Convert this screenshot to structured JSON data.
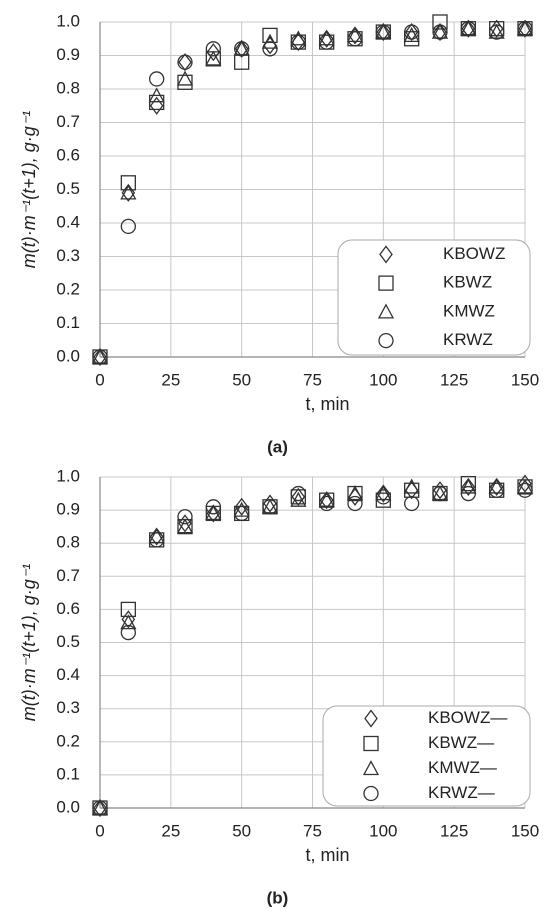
{
  "chart_data": [
    {
      "type": "scatter",
      "caption": "(a)",
      "x_label": "t, min",
      "y_label": "m(t)·m⁻¹(t+1), g·g⁻¹",
      "x": [
        0,
        10,
        20,
        30,
        40,
        50,
        60,
        70,
        80,
        90,
        100,
        110,
        120,
        130,
        140,
        150
      ],
      "xlim": [
        0,
        150
      ],
      "xticks": [
        0,
        25,
        50,
        75,
        100,
        125,
        150
      ],
      "ylim": [
        0,
        1
      ],
      "yticks": [
        {
          "value": 0,
          "label": "0.0"
        },
        0.1,
        0.2,
        0.3,
        0.4,
        0.5,
        0.6,
        0.7,
        0.8,
        0.9,
        {
          "value": 1,
          "label": "1.0"
        }
      ],
      "grid": true,
      "legend": "lower right",
      "series": [
        {
          "name": "KBOWZ",
          "marker": "diamond",
          "color": "#333333",
          "values": [
            0,
            0.49,
            0.75,
            0.88,
            0.91,
            0.92,
            0.93,
            0.94,
            0.95,
            0.96,
            0.97,
            0.97,
            0.97,
            0.98,
            0.98,
            0.98
          ]
        },
        {
          "name": "KBWZ",
          "marker": "square",
          "color": "#333333",
          "values": [
            0,
            0.52,
            0.76,
            0.82,
            0.89,
            0.88,
            0.96,
            0.94,
            0.94,
            0.95,
            0.97,
            0.95,
            1.0,
            0.98,
            0.98,
            0.98
          ]
        },
        {
          "name": "KMWZ",
          "marker": "triangle",
          "color": "#333333",
          "values": [
            0,
            0.49,
            0.78,
            0.83,
            0.89,
            0.92,
            0.94,
            0.95,
            0.95,
            0.96,
            0.97,
            0.96,
            0.97,
            0.98,
            0.97,
            0.98
          ]
        },
        {
          "name": "KRWZ",
          "marker": "circle",
          "color": "#333333",
          "values": [
            0,
            0.39,
            0.83,
            0.88,
            0.92,
            0.92,
            0.92,
            0.94,
            0.94,
            0.95,
            0.97,
            0.97,
            0.97,
            0.98,
            0.97,
            0.98
          ]
        }
      ]
    },
    {
      "type": "scatter",
      "caption": "(b)",
      "x_label": "t, min",
      "y_label": "m(t)·m⁻¹(t+1), g·g⁻¹",
      "x": [
        0,
        10,
        20,
        30,
        40,
        50,
        60,
        70,
        80,
        90,
        100,
        110,
        120,
        130,
        140,
        150
      ],
      "xlim": [
        0,
        150
      ],
      "xticks": [
        0,
        25,
        50,
        75,
        100,
        125,
        150
      ],
      "ylim": [
        0,
        1
      ],
      "yticks": [
        {
          "value": 0,
          "label": "0.0"
        },
        0.1,
        0.2,
        0.3,
        0.4,
        0.5,
        0.6,
        0.7,
        0.8,
        0.9,
        {
          "value": 1,
          "label": "1.0"
        }
      ],
      "grid": true,
      "legend": "lower right",
      "series": [
        {
          "name": "KBOWZ—",
          "marker": "diamond",
          "color": "#333333",
          "values": [
            0,
            0.57,
            0.82,
            0.86,
            0.89,
            0.91,
            0.92,
            0.94,
            0.93,
            0.94,
            0.95,
            0.96,
            0.96,
            0.97,
            0.97,
            0.98
          ]
        },
        {
          "name": "KBWZ—",
          "marker": "square",
          "color": "#333333",
          "values": [
            0,
            0.6,
            0.81,
            0.85,
            0.89,
            0.89,
            0.91,
            0.94,
            0.93,
            0.95,
            0.93,
            0.96,
            0.95,
            0.98,
            0.96,
            0.97
          ]
        },
        {
          "name": "KMWZ—",
          "marker": "triangle",
          "color": "#333333",
          "values": [
            0,
            0.56,
            0.82,
            0.85,
            0.89,
            0.9,
            0.91,
            0.93,
            0.93,
            0.95,
            0.95,
            0.97,
            0.95,
            0.97,
            0.97,
            0.97
          ]
        },
        {
          "name": "KRWZ—",
          "marker": "circle",
          "color": "#333333",
          "values": [
            0,
            0.53,
            0.81,
            0.88,
            0.91,
            0.89,
            0.91,
            0.95,
            0.92,
            0.92,
            0.94,
            0.92,
            0.95,
            0.95,
            0.96,
            0.96
          ]
        }
      ]
    }
  ]
}
